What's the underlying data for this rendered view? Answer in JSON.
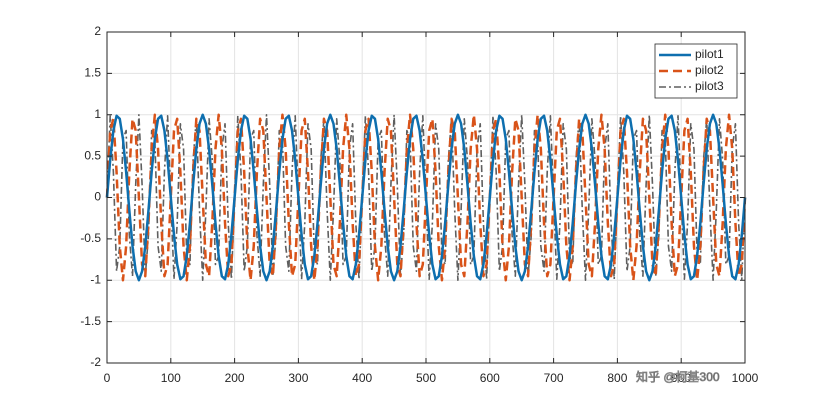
{
  "chart_data": {
    "type": "line",
    "xlim": [
      0,
      1000
    ],
    "ylim": [
      -2,
      2
    ],
    "xticks": [
      0,
      100,
      200,
      300,
      400,
      500,
      600,
      700,
      800,
      900,
      1000
    ],
    "yticks": [
      -2,
      -1.5,
      -1,
      -0.5,
      0,
      0.5,
      1,
      1.5,
      2
    ],
    "grid": true,
    "legend": "upper right",
    "watermark": "知乎 @柯基300",
    "x": [
      0,
      5,
      10,
      15,
      20,
      25,
      30,
      35,
      40,
      45,
      50,
      55,
      60,
      65,
      70,
      75,
      80,
      85,
      90,
      95,
      100,
      105,
      110,
      115,
      120,
      125,
      130,
      135,
      140,
      145,
      150,
      155,
      160,
      165,
      170,
      175,
      180,
      185,
      190,
      195,
      200,
      205,
      210,
      215,
      220,
      225,
      230,
      235,
      240,
      245,
      250,
      255,
      260,
      265,
      270,
      275,
      280,
      285,
      290,
      295,
      300,
      305,
      310,
      315,
      320,
      325,
      330,
      335,
      340,
      345,
      350,
      355,
      360,
      365,
      370,
      375,
      380,
      385,
      390,
      395,
      400,
      405,
      410,
      415,
      420,
      425,
      430,
      435,
      440,
      445,
      450,
      455,
      460,
      465,
      470,
      475,
      480,
      485,
      490,
      495,
      500,
      505,
      510,
      515,
      520,
      525,
      530,
      535,
      540,
      545,
      550,
      555,
      560,
      565,
      570,
      575,
      580,
      585,
      590,
      595,
      600,
      605,
      610,
      615,
      620,
      625,
      630,
      635,
      640,
      645,
      650,
      655,
      660,
      665,
      670,
      675,
      680,
      685,
      690,
      695,
      700,
      705,
      710,
      715,
      720,
      725,
      730,
      735,
      740,
      745,
      750,
      755,
      760,
      765,
      770,
      775,
      780,
      785,
      790,
      795,
      800,
      805,
      810,
      815,
      820,
      825,
      830,
      835,
      840,
      845,
      850,
      855,
      860,
      865,
      870,
      875,
      880,
      885,
      890,
      895,
      900,
      905,
      910,
      915,
      920,
      925,
      930,
      935,
      940,
      945,
      950,
      955,
      960,
      965,
      970,
      975,
      980,
      985,
      990,
      995,
      1000
    ],
    "series": [
      {
        "name": "pilot1",
        "color": "#0e6faf",
        "style": "solid",
        "width": 2.5,
        "values": [
          0,
          0.454,
          0.809,
          0.988,
          0.951,
          0.707,
          0.309,
          -0.156,
          -0.588,
          -0.891,
          -1,
          -0.891,
          -0.588,
          -0.156,
          0.309,
          0.707,
          0.951,
          0.988,
          0.809,
          0.454,
          0,
          -0.454,
          -0.809,
          -0.988,
          -0.951,
          -0.707,
          -0.309,
          0.156,
          0.588,
          0.891,
          1,
          0.891,
          0.588,
          0.156,
          -0.309,
          -0.707,
          -0.951,
          -0.988,
          -0.809,
          -0.454,
          0,
          0.454,
          0.809,
          0.988,
          0.951,
          0.707,
          0.309,
          -0.156,
          -0.588,
          -0.891,
          -1,
          -0.891,
          -0.588,
          -0.156,
          0.309,
          0.707,
          0.951,
          0.988,
          0.809,
          0.454,
          0,
          -0.454,
          -0.809,
          -0.988,
          -0.951,
          -0.707,
          -0.309,
          0.156,
          0.588,
          0.891,
          1,
          0.891,
          0.588,
          0.156,
          -0.309,
          -0.707,
          -0.951,
          -0.988,
          -0.809,
          -0.454,
          0,
          0.454,
          0.809,
          0.988,
          0.951,
          0.707,
          0.309,
          -0.156,
          -0.588,
          -0.891,
          -1,
          -0.891,
          -0.588,
          -0.156,
          0.309,
          0.707,
          0.951,
          0.988,
          0.809,
          0.454,
          0,
          -0.454,
          -0.809,
          -0.988,
          -0.951,
          -0.707,
          -0.309,
          0.156,
          0.588,
          0.891,
          1,
          0.891,
          0.588,
          0.156,
          -0.309,
          -0.707,
          -0.951,
          -0.988,
          -0.809,
          -0.454,
          0,
          0.454,
          0.809,
          0.988,
          0.951,
          0.707,
          0.309,
          -0.156,
          -0.588,
          -0.891,
          -1,
          -0.891,
          -0.588,
          -0.156,
          0.309,
          0.707,
          0.951,
          0.988,
          0.809,
          0.454,
          0,
          -0.454,
          -0.809,
          -0.988,
          -0.951,
          -0.707,
          -0.309,
          0.156,
          0.588,
          0.891,
          1,
          0.891,
          0.588,
          0.156,
          -0.309,
          -0.707,
          -0.951,
          -0.988,
          -0.809,
          -0.454,
          0,
          0.454,
          0.809,
          0.988,
          0.951,
          0.707,
          0.309,
          -0.156,
          -0.588,
          -0.891,
          -1,
          -0.891,
          -0.588,
          -0.156,
          0.309,
          0.707,
          0.951,
          0.988,
          0.809,
          0.454,
          0,
          -0.454,
          -0.809,
          -0.988,
          -0.951,
          -0.707,
          -0.309,
          0.156,
          0.588,
          0.891,
          1,
          0.891,
          0.588,
          0.156,
          -0.309,
          -0.707,
          -0.951,
          -0.988,
          -0.809,
          -0.454,
          0
        ]
      },
      {
        "name": "pilot2",
        "color": "#d95319",
        "style": "dashed",
        "width": 2.5,
        "values": [
          0,
          0.809,
          0.951,
          0.309,
          -0.588,
          -1,
          -0.588,
          0.309,
          0.951,
          0.809,
          0,
          -0.809,
          -0.951,
          -0.309,
          0.588,
          1,
          0.588,
          -0.309,
          -0.951,
          -0.809,
          0,
          0.809,
          0.951,
          0.309,
          -0.588,
          -1,
          -0.588,
          0.309,
          0.951,
          0.809,
          0,
          -0.809,
          -0.951,
          -0.309,
          0.588,
          1,
          0.588,
          -0.309,
          -0.951,
          -0.809,
          0,
          0.809,
          0.951,
          0.309,
          -0.588,
          -1,
          -0.588,
          0.309,
          0.951,
          0.809,
          0,
          -0.809,
          -0.951,
          -0.309,
          0.588,
          1,
          0.588,
          -0.309,
          -0.951,
          -0.809,
          0,
          0.809,
          0.951,
          0.309,
          -0.588,
          -1,
          -0.588,
          0.309,
          0.951,
          0.809,
          0,
          -0.809,
          -0.951,
          -0.309,
          0.588,
          1,
          0.588,
          -0.309,
          -0.951,
          -0.809,
          0,
          0.809,
          0.951,
          0.309,
          -0.588,
          -1,
          -0.588,
          0.309,
          0.951,
          0.809,
          0,
          -0.809,
          -0.951,
          -0.309,
          0.588,
          1,
          0.588,
          -0.309,
          -0.951,
          -0.809,
          0,
          0.809,
          0.951,
          0.309,
          -0.588,
          -1,
          -0.588,
          0.309,
          0.951,
          0.809,
          0,
          -0.809,
          -0.951,
          -0.309,
          0.588,
          1,
          0.588,
          -0.309,
          -0.951,
          -0.809,
          0,
          0.809,
          0.951,
          0.309,
          -0.588,
          -1,
          -0.588,
          0.309,
          0.951,
          0.809,
          0,
          -0.809,
          -0.951,
          -0.309,
          0.588,
          1,
          0.588,
          -0.309,
          -0.951,
          -0.809,
          0,
          0.809,
          0.951,
          0.309,
          -0.588,
          -1,
          -0.588,
          0.309,
          0.951,
          0.809,
          0,
          -0.809,
          -0.951,
          -0.309,
          0.588,
          1,
          0.588,
          -0.309,
          -0.951,
          -0.809,
          0,
          0.809,
          0.951,
          0.309,
          -0.588,
          -1,
          -0.588,
          0.309,
          0.951,
          0.809,
          0,
          -0.809,
          -0.951,
          -0.309,
          0.588,
          1,
          0.588,
          -0.309,
          -0.951,
          -0.809,
          0,
          0.809,
          0.951,
          0.309,
          -0.588,
          -1,
          -0.588,
          0.309,
          0.951,
          0.809,
          0,
          -0.809,
          -0.951,
          -0.309,
          0.588,
          1,
          0.588,
          -0.309,
          -0.951,
          -0.809,
          0
        ]
      },
      {
        "name": "pilot3",
        "color": "#5f5f5f",
        "style": "dashdot",
        "width": 1.6,
        "values": [
          0,
          0.988,
          0.309,
          -0.891,
          -0.588,
          0.707,
          0.809,
          -0.454,
          -0.951,
          0.156,
          1,
          0.156,
          -0.951,
          -0.454,
          0.809,
          0.707,
          -0.588,
          -0.891,
          0.309,
          0.988,
          0,
          -0.988,
          -0.309,
          0.891,
          0.588,
          -0.707,
          -0.809,
          0.454,
          0.951,
          -0.156,
          -1,
          -0.156,
          0.951,
          0.454,
          -0.809,
          -0.707,
          0.588,
          0.891,
          -0.309,
          -0.988,
          0,
          0.988,
          0.309,
          -0.891,
          -0.588,
          0.707,
          0.809,
          -0.454,
          -0.951,
          0.156,
          1,
          0.156,
          -0.951,
          -0.454,
          0.809,
          0.707,
          -0.588,
          -0.891,
          0.309,
          0.988,
          0,
          -0.988,
          -0.309,
          0.891,
          0.588,
          -0.707,
          -0.809,
          0.454,
          0.951,
          -0.156,
          -1,
          -0.156,
          0.951,
          0.454,
          -0.809,
          -0.707,
          0.588,
          0.891,
          -0.309,
          -0.988,
          0,
          0.988,
          0.309,
          -0.891,
          -0.588,
          0.707,
          0.809,
          -0.454,
          -0.951,
          0.156,
          1,
          0.156,
          -0.951,
          -0.454,
          0.809,
          0.707,
          -0.588,
          -0.891,
          0.309,
          0.988,
          0,
          -0.988,
          -0.309,
          0.891,
          0.588,
          -0.707,
          -0.809,
          0.454,
          0.951,
          -0.156,
          -1,
          -0.156,
          0.951,
          0.454,
          -0.809,
          -0.707,
          0.588,
          0.891,
          -0.309,
          -0.988,
          0,
          0.988,
          0.309,
          -0.891,
          -0.588,
          0.707,
          0.809,
          -0.454,
          -0.951,
          0.156,
          1,
          0.156,
          -0.951,
          -0.454,
          0.809,
          0.707,
          -0.588,
          -0.891,
          0.309,
          0.988,
          0,
          -0.988,
          -0.309,
          0.891,
          0.588,
          -0.707,
          -0.809,
          0.454,
          0.951,
          -0.156,
          -1,
          -0.156,
          0.951,
          0.454,
          -0.809,
          -0.707,
          0.588,
          0.891,
          -0.309,
          -0.988,
          0,
          0.988,
          0.309,
          -0.891,
          -0.588,
          0.707,
          0.809,
          -0.454,
          -0.951,
          0.156,
          1,
          0.156,
          -0.951,
          -0.454,
          0.809,
          0.707,
          -0.588,
          -0.891,
          0.309,
          0.988,
          0,
          -0.988,
          -0.309,
          0.891,
          0.588,
          -0.707,
          -0.809,
          0.454,
          0.951,
          -0.156,
          -1,
          -0.156,
          0.951,
          0.454,
          -0.809,
          -0.707,
          0.588,
          0.891,
          -0.309,
          -0.988,
          0
        ]
      }
    ]
  }
}
